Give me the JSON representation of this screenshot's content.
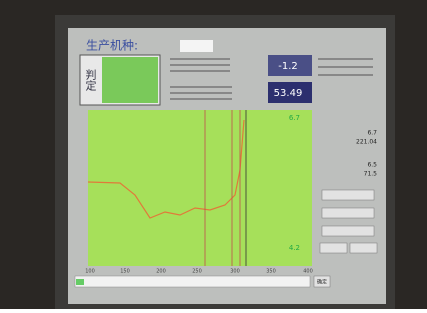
{
  "header": {
    "title": "生产机种:"
  },
  "judge": {
    "label": "判定"
  },
  "readouts": [
    "-1.2",
    "53.49"
  ],
  "chart": {
    "top_label": "6.7",
    "bottom_label": "4.2",
    "x_labels": [
      "100",
      "150",
      "200",
      "250",
      "300",
      "350",
      "400"
    ]
  },
  "results": [
    "6.7",
    "221.04",
    "6.5",
    "71.5"
  ],
  "footer": {
    "button": "确定"
  }
}
